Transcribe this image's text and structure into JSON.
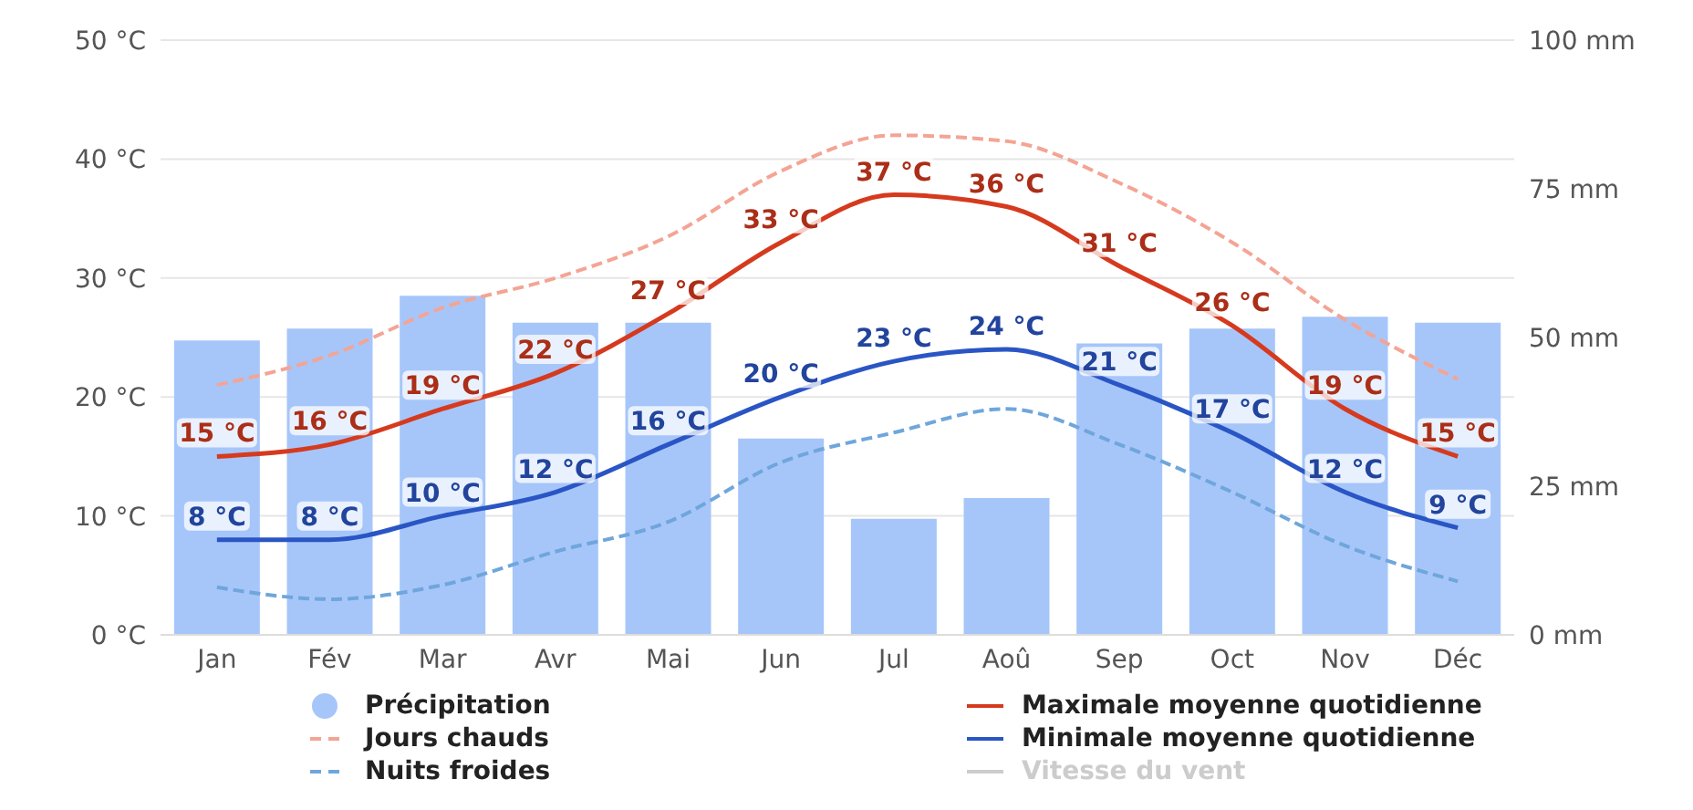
{
  "chart_data": {
    "type": "line",
    "categories": [
      "Jan",
      "Fév",
      "Mar",
      "Avr",
      "Mai",
      "Jun",
      "Jul",
      "Aoû",
      "Sep",
      "Oct",
      "Nov",
      "Déc"
    ],
    "series": [
      {
        "name": "Précipitation",
        "type": "bar",
        "axis": "y2",
        "color": "#a6c6fa",
        "values": [
          49.5,
          51.5,
          57,
          52.5,
          52.5,
          33,
          19.5,
          23,
          49,
          51.5,
          53.5,
          52.5
        ]
      },
      {
        "name": "Jours chauds",
        "color": "#f4a494",
        "line_style": "dashed",
        "values": [
          21,
          23.5,
          27.5,
          30,
          33.5,
          39,
          42,
          41.5,
          38,
          33,
          26.5,
          21.5
        ]
      },
      {
        "name": "Nuits froides",
        "color": "#6fa6dc",
        "line_style": "dashed",
        "values": [
          4,
          3,
          4.2,
          7,
          9.5,
          14.5,
          17,
          19,
          16,
          12,
          7.5,
          4.5
        ]
      },
      {
        "name": "Maximale moyenne quotidienne",
        "color": "#d63a1e",
        "line_style": "solid",
        "values": [
          15,
          16,
          19,
          22,
          27,
          33,
          37,
          36,
          31,
          26,
          19,
          15
        ],
        "value_labels": [
          "15 °C",
          "16 °C",
          "19 °C",
          "22 °C",
          "27 °C",
          "33 °C",
          "37 °C",
          "36 °C",
          "31 °C",
          "26 °C",
          "19 °C",
          "15 °C"
        ]
      },
      {
        "name": "Minimale moyenne quotidienne",
        "color": "#2a55c4",
        "line_style": "solid",
        "values": [
          8,
          8,
          10,
          12,
          16,
          20,
          23,
          24,
          21,
          17,
          12,
          9
        ],
        "value_labels": [
          "8 °C",
          "8 °C",
          "10 °C",
          "12 °C",
          "16 °C",
          "20 °C",
          "23 °C",
          "24 °C",
          "21 °C",
          "17 °C",
          "12 °C",
          "9 °C"
        ]
      },
      {
        "name": "Vitesse du vent",
        "color": "#cccccc",
        "line_style": "solid",
        "values": [
          null,
          null,
          null,
          null,
          null,
          null,
          null,
          null,
          null,
          null,
          null,
          null
        ]
      }
    ],
    "ylim": [
      0,
      50
    ],
    "yticks": [
      {
        "value": 0,
        "label": "0 °C"
      },
      {
        "value": 10,
        "label": "10 °C"
      },
      {
        "value": 20,
        "label": "20 °C"
      },
      {
        "value": 30,
        "label": "30 °C"
      },
      {
        "value": 40,
        "label": "40 °C"
      },
      {
        "value": 50,
        "label": "50 °C"
      }
    ],
    "y2lim": [
      0,
      100
    ],
    "y2ticks": [
      {
        "value": 0,
        "label": "0 mm"
      },
      {
        "value": 25,
        "label": "25 mm"
      },
      {
        "value": 50,
        "label": "50 mm"
      },
      {
        "value": 75,
        "label": "75 mm"
      },
      {
        "value": 100,
        "label": "100 mm"
      }
    ],
    "grid": "y",
    "legend": "bottom",
    "marker": "none"
  }
}
